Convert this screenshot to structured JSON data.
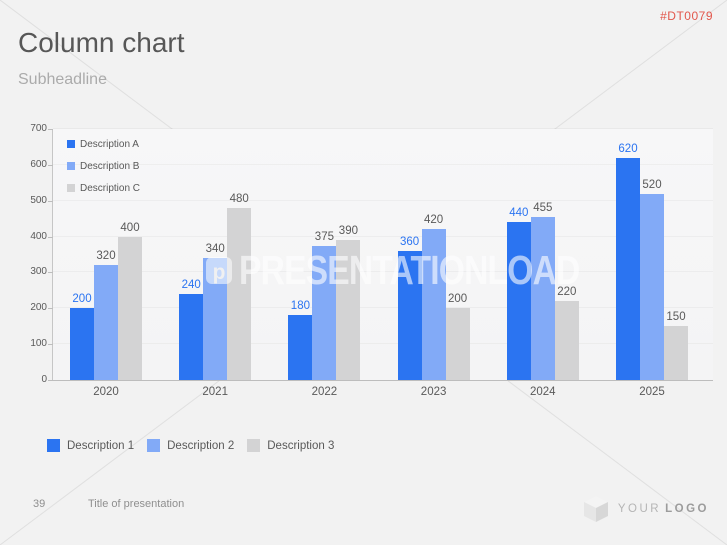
{
  "slide": {
    "code": "#DT0079",
    "title": "Column chart",
    "subheadline": "Subheadline",
    "page_number": "39",
    "footer_title": "Title of presentation",
    "logo": {
      "light": "YOUR",
      "bold": "LOGO"
    },
    "watermark": {
      "text": "PRESENTATIONLOAD",
      "bubble_letter": "p"
    }
  },
  "chart_data": {
    "type": "bar",
    "categories": [
      "2020",
      "2021",
      "2022",
      "2023",
      "2024",
      "2025"
    ],
    "series": [
      {
        "name": "Description A",
        "color": "#2B74F1",
        "label_color": "#2B74F1",
        "values": [
          200,
          240,
          180,
          360,
          440,
          620
        ]
      },
      {
        "name": "Description B",
        "color": "#82AAF7",
        "label_color": "#595959",
        "values": [
          320,
          340,
          375,
          420,
          455,
          520
        ]
      },
      {
        "name": "Description C",
        "color": "#D3D3D4",
        "label_color": "#595959",
        "values": [
          400,
          480,
          390,
          200,
          220,
          150
        ]
      }
    ],
    "ylim": [
      0,
      700
    ],
    "yticks": [
      0,
      100,
      200,
      300,
      400,
      500,
      600,
      700
    ],
    "grid": true,
    "legend_position": "top-left-inside",
    "title": "",
    "xlabel": "",
    "ylabel": ""
  },
  "legend_bottom": {
    "items": [
      {
        "label": "Description 1",
        "color": "#2B74F1"
      },
      {
        "label": "Description 2",
        "color": "#82AAF7"
      },
      {
        "label": "Description 3",
        "color": "#D3D3D4"
      }
    ]
  }
}
